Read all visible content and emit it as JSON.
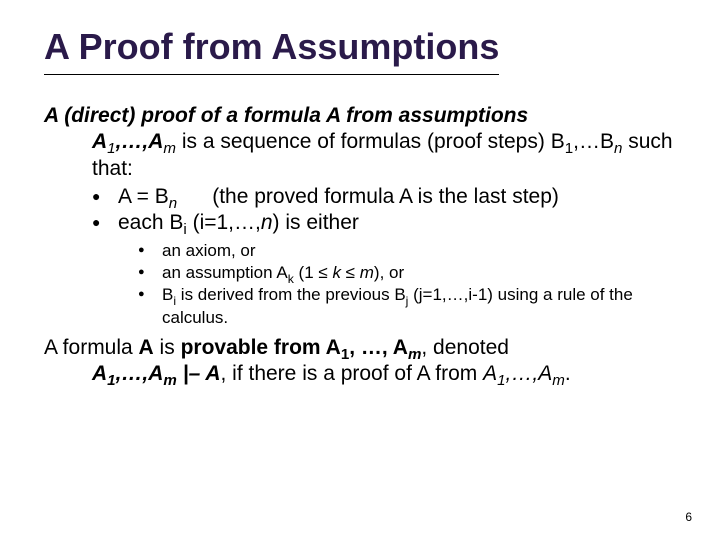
{
  "title_color": "#2a1a4a",
  "title": "A Proof from Assumptions",
  "intro_html": "<span class='boldit'>A (direct) proof of a formula A from assumptions</span><span class='hang'><span class='boldit'>A</span><span class='subit'>1</span><span class='boldit'>,…,A</span><span class='subit'>m</span> is a sequence of formulas (proof steps) B<span class='sub'>1</span>,…B<span class='subit'>n</span> such that:</span>",
  "level1": [
    "A = B<span class='subit'>n</span> &nbsp;&nbsp;&nbsp;&nbsp;&nbsp;(the proved formula A is the last step)",
    "each B<span class='sub'>i</span> (i=1,…,<span class='italic'>n</span>) is either"
  ],
  "level2": [
    "an axiom, or",
    "an assumption A<span class='sub'>k</span> (1 ≤ <span class='italic'>k</span> ≤ <span class='italic'>m</span>), or",
    "B<span class='sub'>i</span> is derived from the previous B<span class='sub'>j</span> (j=1,…,i-1) using a rule of the calculus."
  ],
  "closing_html": "A formula <span class='bold'>A</span> is <span class='bold'>provable from  A</span><span class='sub bold'>1</span><span class='bold'>, …, A</span><span class='subit bold'>m</span>, denoted<span class='hang'><span class='boldit'>A</span><span class='subit bold'>1</span><span class='boldit'>,…,A</span><span class='subit bold'>m</span> <span class='boldit'>|– A</span>, if there is a proof of A from <span class='italic'>A</span><span class='subit'>1</span><span class='italic'>,…,A</span><span class='subit'>m</span>.</span>",
  "page_number": "6"
}
